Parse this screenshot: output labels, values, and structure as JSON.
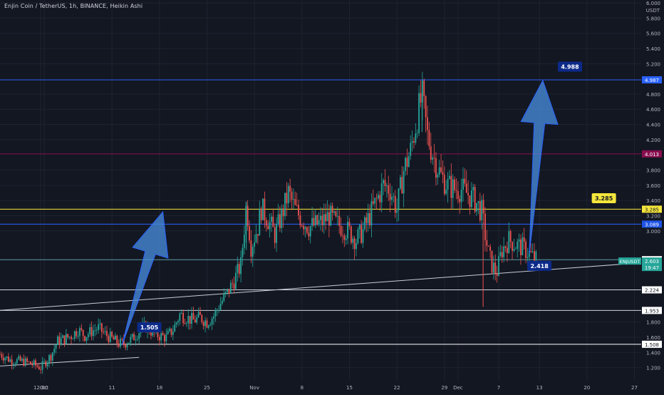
{
  "header": {
    "title": "Enjin Coin / TetherUS, 1h, BINANCE, Heikin Ashi",
    "currency": "USDT"
  },
  "colors": {
    "background": "#131722",
    "grid": "#1f2330",
    "text": "#b2b5be",
    "up": "#26a69a",
    "down": "#ef5350",
    "blue_line": "#2962ff",
    "purple_line": "#9c27b0",
    "yellow_line": "#ffeb3b",
    "arrow": "#2962ff",
    "arrow_light": "#4a90e2"
  },
  "chart_data": {
    "type": "candlestick",
    "title": "Enjin Coin / TetherUS, 1h, BINANCE, Heikin Ashi",
    "ylim": [
      1.0,
      6.0
    ],
    "y_ticks": [
      {
        "v": 6.0,
        "label": "6.000"
      },
      {
        "v": 5.8,
        "label": "5.800"
      },
      {
        "v": 5.6,
        "label": "5.600"
      },
      {
        "v": 5.4,
        "label": "5.400"
      },
      {
        "v": 5.2,
        "label": "5.200"
      },
      {
        "v": 4.8,
        "label": "4.800"
      },
      {
        "v": 4.6,
        "label": "4.600"
      },
      {
        "v": 4.4,
        "label": "4.400"
      },
      {
        "v": 4.2,
        "label": "4.200"
      },
      {
        "v": 3.8,
        "label": "3.800"
      },
      {
        "v": 3.6,
        "label": "3.600"
      },
      {
        "v": 3.4,
        "label": "3.400"
      },
      {
        "v": 3.2,
        "label": "3.200"
      },
      {
        "v": 3.0,
        "label": "3.000"
      },
      {
        "v": 1.8,
        "label": "1.800"
      },
      {
        "v": 1.6,
        "label": "1.600"
      },
      {
        "v": 1.4,
        "label": "1.400"
      },
      {
        "v": 1.2,
        "label": "1.200"
      }
    ],
    "x_ticks": [
      {
        "day": -0.5,
        "label": "12:00"
      },
      {
        "day": 0,
        "label": "Oct"
      },
      {
        "day": 10,
        "label": "11"
      },
      {
        "day": 17,
        "label": "18"
      },
      {
        "day": 24,
        "label": "25"
      },
      {
        "day": 31,
        "label": "Nov"
      },
      {
        "day": 38,
        "label": "8"
      },
      {
        "day": 45,
        "label": "15"
      },
      {
        "day": 52,
        "label": "22"
      },
      {
        "day": 59,
        "label": "29"
      },
      {
        "day": 61,
        "label": "Dec"
      },
      {
        "day": 67,
        "label": "7"
      },
      {
        "day": 73,
        "label": "13"
      },
      {
        "day": 80,
        "label": "20"
      },
      {
        "day": 87,
        "label": "27"
      }
    ],
    "x_domain": [
      -6.5,
      88
    ],
    "price_path": [
      [
        -6.5,
        1.38
      ],
      [
        -5,
        1.3
      ],
      [
        -3,
        1.28
      ],
      [
        -1.5,
        1.24
      ],
      [
        -0.5,
        1.2
      ],
      [
        1,
        1.36
      ],
      [
        2,
        1.55
      ],
      [
        3,
        1.58
      ],
      [
        4,
        1.62
      ],
      [
        5,
        1.7
      ],
      [
        6,
        1.62
      ],
      [
        7,
        1.68
      ],
      [
        8,
        1.72
      ],
      [
        9,
        1.64
      ],
      [
        10,
        1.58
      ],
      [
        11,
        1.52
      ],
      [
        11.8,
        1.52
      ],
      [
        13,
        1.58
      ],
      [
        14,
        1.68
      ],
      [
        15,
        1.74
      ],
      [
        16,
        1.66
      ],
      [
        17,
        1.62
      ],
      [
        18,
        1.6
      ],
      [
        19,
        1.7
      ],
      [
        20,
        1.9
      ],
      [
        21,
        1.86
      ],
      [
        22,
        1.82
      ],
      [
        23,
        1.86
      ],
      [
        24,
        1.8
      ],
      [
        25,
        1.88
      ],
      [
        26,
        2.05
      ],
      [
        27,
        2.18
      ],
      [
        28,
        2.35
      ],
      [
        29,
        2.55
      ],
      [
        29.8,
        3.35
      ],
      [
        30.5,
        2.8
      ],
      [
        31.5,
        3.05
      ],
      [
        32,
        3.3
      ],
      [
        33,
        3.15
      ],
      [
        34,
        2.95
      ],
      [
        35,
        3.2
      ],
      [
        36,
        3.5
      ],
      [
        37,
        3.28
      ],
      [
        38,
        3.15
      ],
      [
        39,
        3.05
      ],
      [
        40,
        3.08
      ],
      [
        41,
        3.12
      ],
      [
        42,
        3.2
      ],
      [
        43,
        3.1
      ],
      [
        44,
        3.05
      ],
      [
        45,
        2.98
      ],
      [
        46,
        2.88
      ],
      [
        47,
        3.0
      ],
      [
        48,
        3.2
      ],
      [
        49,
        3.4
      ],
      [
        50,
        3.6
      ],
      [
        51,
        3.55
      ],
      [
        52,
        3.28
      ],
      [
        53,
        3.8
      ],
      [
        54,
        4.05
      ],
      [
        55,
        4.5
      ],
      [
        55.7,
        4.78
      ],
      [
        56.5,
        4.25
      ],
      [
        57.5,
        3.95
      ],
      [
        58.5,
        3.72
      ],
      [
        59.5,
        3.6
      ],
      [
        60.5,
        3.55
      ],
      [
        61.5,
        3.55
      ],
      [
        62.5,
        3.48
      ],
      [
        63.5,
        3.4
      ],
      [
        64.5,
        3.25
      ],
      [
        65,
        2.95
      ],
      [
        65.5,
        2.7
      ],
      [
        66,
        2.55
      ],
      [
        66.7,
        2.45
      ],
      [
        67.5,
        2.75
      ],
      [
        68.5,
        2.88
      ],
      [
        69.5,
        2.82
      ],
      [
        70.5,
        2.78
      ],
      [
        71.5,
        2.7
      ],
      [
        72.5,
        2.62
      ]
    ],
    "current_price": 2.603,
    "price_labels": [
      {
        "v": 4.987,
        "label": "4.987",
        "color": "#2962ff"
      },
      {
        "v": 4.013,
        "label": "4.013",
        "color": "#880e4f"
      },
      {
        "v": 3.285,
        "label": "3.285",
        "color": "#f5e63c"
      },
      {
        "v": 3.089,
        "label": "3.089",
        "color": "#1e53e5"
      },
      {
        "v": 2.621,
        "label": "2.621",
        "color": "#ffffff"
      },
      {
        "v": 2.59,
        "label": "2.590",
        "color": "#ef5350"
      },
      {
        "v": 2.224,
        "label": "2.224",
        "color": "#ffffff"
      },
      {
        "v": 1.953,
        "label": "1.953",
        "color": "#ffffff"
      },
      {
        "v": 1.508,
        "label": "1.508",
        "color": "#ffffff"
      }
    ],
    "current_label": {
      "symbol": "ENJUSDT",
      "price": "2.603",
      "countdown": "19:47"
    },
    "horizontal_lines": [
      {
        "v": 4.987,
        "color": "#2962ff"
      },
      {
        "v": 4.013,
        "color": "#880e4f"
      },
      {
        "v": 3.285,
        "color": "#ffeb3b"
      },
      {
        "v": 3.089,
        "color": "#2962ff"
      },
      {
        "v": 2.621,
        "color": "#5d9ea8"
      },
      {
        "v": 2.224,
        "color": "#d1d4dc"
      },
      {
        "v": 1.953,
        "color": "#d1d4dc"
      },
      {
        "v": 1.508,
        "color": "#ffffff"
      }
    ],
    "trend_lines": [
      {
        "from": [
          -6.5,
          1.955
        ],
        "to": [
          88,
          2.58
        ]
      },
      {
        "from": [
          -6.5,
          1.222
        ],
        "to": [
          14,
          1.335
        ]
      }
    ],
    "annotations": [
      {
        "text": "1.505",
        "day": 15.5,
        "v": 1.73,
        "bg": "#0d2a8a",
        "fg": "#ffffff"
      },
      {
        "text": "4.988",
        "day": 77.5,
        "v": 5.16,
        "bg": "#0d2a8a",
        "fg": "#ffffff"
      },
      {
        "text": "3.285",
        "day": 82.5,
        "v": 3.43,
        "bg": "#f5e63c",
        "fg": "#131722"
      },
      {
        "text": "2.418",
        "day": 73,
        "v": 2.54,
        "bg": "#0d2a8a",
        "fg": "#ffffff"
      }
    ],
    "arrows": [
      {
        "from": [
          11.5,
          1.5
        ],
        "to": [
          17.5,
          3.25
        ]
      },
      {
        "from": [
          71.5,
          2.7
        ],
        "to": [
          73.5,
          4.98
        ]
      }
    ],
    "grid": true
  }
}
